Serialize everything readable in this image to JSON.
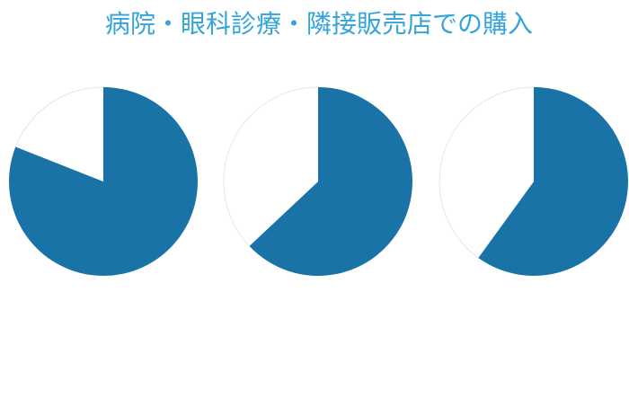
{
  "title": "病院・眼科診療・隣接販売店での購入",
  "chart_data": [
    {
      "type": "pie",
      "values": [
        81,
        19
      ],
      "colors": [
        "#1a73a7",
        "#ffffff"
      ]
    },
    {
      "type": "pie",
      "values": [
        63,
        37
      ],
      "colors": [
        "#1a73a7",
        "#ffffff"
      ]
    },
    {
      "type": "pie",
      "values": [
        60,
        40
      ],
      "colors": [
        "#1a73a7",
        "#ffffff"
      ]
    }
  ]
}
